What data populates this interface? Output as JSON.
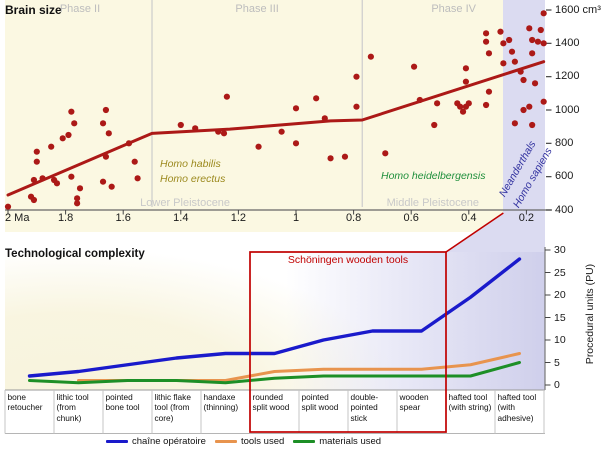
{
  "figure": {
    "top_title": "Brain size",
    "bottom_title": "Technological complexity"
  },
  "colors": {
    "panel_yellow": "#FBF8E2",
    "highlight_blue": "#DBDBF1",
    "data_red": "#AC1917",
    "annotation_red": "#C00000",
    "phase_gray": "#BDBDBD",
    "period_gray": "#C9C9C9",
    "species_olive": "#9C8A1F",
    "species_green": "#1F8F3C",
    "species_navy": "#3333A0"
  },
  "chart_data": [
    {
      "type": "scatter",
      "title": "Brain size",
      "x_unit": "Ma",
      "y_unit": "cm³",
      "xlim": [
        2.0,
        0.13
      ],
      "ylim": [
        400,
        1640
      ],
      "x_ticks": [
        {
          "label": "2 Ma",
          "value": 2
        },
        {
          "label": "1.8",
          "value": 1.8
        },
        {
          "label": "1.6",
          "value": 1.6
        },
        {
          "label": "1.4",
          "value": 1.4
        },
        {
          "label": "1.2",
          "value": 1.2
        },
        {
          "label": "1",
          "value": 1
        },
        {
          "label": "0.8",
          "value": 0.8
        },
        {
          "label": "0.6",
          "value": 0.6
        },
        {
          "label": "0.4",
          "value": 0.4
        },
        {
          "label": "0.2",
          "value": 0.2
        }
      ],
      "y_ticks": [
        {
          "label": "1600 cm³",
          "value": 1600
        },
        {
          "label": "1400",
          "value": 1400
        },
        {
          "label": "1200",
          "value": 1200
        },
        {
          "label": "1000",
          "value": 1000
        },
        {
          "label": "800",
          "value": 800
        },
        {
          "label": "600",
          "value": 600
        },
        {
          "label": "400",
          "value": 400
        }
      ],
      "phases": [
        {
          "label": "Phase II",
          "from_ma": 2.0,
          "to_ma": 1.5
        },
        {
          "label": "Phase III",
          "from_ma": 1.5,
          "to_ma": 0.77
        },
        {
          "label": "Phase IV",
          "from_ma": 0.77,
          "to_ma": 0.135
        }
      ],
      "period_labels": [
        {
          "label": "Lower Pleistocene",
          "center_ma": 1.385
        },
        {
          "label": "Middle Pleistocene",
          "center_ma": 0.525
        }
      ],
      "species_labels": [
        {
          "label": "Homo habilis",
          "color_key": "species_olive"
        },
        {
          "label": "Homo erectus",
          "color_key": "species_olive"
        },
        {
          "label": "Homo heidelbergensis",
          "color_key": "species_green"
        },
        {
          "label": "Neanderthals",
          "color_key": "species_navy"
        },
        {
          "label": "Homo sapiens",
          "color_key": "species_navy"
        }
      ],
      "highlight_band_ma": [
        0.28,
        0.135
      ],
      "trend_line": [
        [
          2.0,
          490
        ],
        [
          1.5,
          860
        ],
        [
          1.23,
          885
        ],
        [
          0.88,
          935
        ],
        [
          0.77,
          940
        ],
        [
          0.14,
          1290
        ]
      ],
      "points": [
        [
          2.0,
          420
        ],
        [
          1.92,
          480
        ],
        [
          1.91,
          460
        ],
        [
          1.91,
          580
        ],
        [
          1.9,
          750
        ],
        [
          1.9,
          690
        ],
        [
          1.88,
          590
        ],
        [
          1.85,
          780
        ],
        [
          1.84,
          580
        ],
        [
          1.83,
          560
        ],
        [
          1.81,
          830
        ],
        [
          1.79,
          850
        ],
        [
          1.78,
          990
        ],
        [
          1.78,
          600
        ],
        [
          1.77,
          920
        ],
        [
          1.76,
          440
        ],
        [
          1.76,
          470
        ],
        [
          1.75,
          530
        ],
        [
          1.67,
          920
        ],
        [
          1.66,
          1000
        ],
        [
          1.67,
          570
        ],
        [
          1.66,
          720
        ],
        [
          1.65,
          860
        ],
        [
          1.64,
          540
        ],
        [
          1.58,
          800
        ],
        [
          1.56,
          690
        ],
        [
          1.55,
          590
        ],
        [
          1.4,
          910
        ],
        [
          1.35,
          890
        ],
        [
          1.27,
          870
        ],
        [
          1.25,
          860
        ],
        [
          1.24,
          1080
        ],
        [
          1.13,
          780
        ],
        [
          1.05,
          870
        ],
        [
          1.0,
          1010
        ],
        [
          1.0,
          800
        ],
        [
          0.93,
          1070
        ],
        [
          0.9,
          950
        ],
        [
          0.88,
          710
        ],
        [
          0.83,
          720
        ],
        [
          0.79,
          1200
        ],
        [
          0.79,
          1020
        ],
        [
          0.74,
          1320
        ],
        [
          0.69,
          740
        ],
        [
          0.59,
          1260
        ],
        [
          0.57,
          1060
        ],
        [
          0.52,
          910
        ],
        [
          0.51,
          1040
        ],
        [
          0.44,
          1040
        ],
        [
          0.43,
          1020
        ],
        [
          0.42,
          990
        ],
        [
          0.41,
          1020
        ],
        [
          0.4,
          1040
        ],
        [
          0.41,
          1250
        ],
        [
          0.41,
          1170
        ],
        [
          0.34,
          1460
        ],
        [
          0.34,
          1410
        ],
        [
          0.33,
          1340
        ],
        [
          0.33,
          1110
        ],
        [
          0.34,
          1030
        ],
        [
          0.29,
          1470
        ],
        [
          0.28,
          1400
        ],
        [
          0.28,
          1280
        ],
        [
          0.26,
          1420
        ],
        [
          0.25,
          1350
        ],
        [
          0.24,
          920
        ],
        [
          0.24,
          1290
        ],
        [
          0.22,
          1230
        ],
        [
          0.21,
          1180
        ],
        [
          0.21,
          1000
        ],
        [
          0.19,
          1490
        ],
        [
          0.19,
          1020
        ],
        [
          0.18,
          1420
        ],
        [
          0.18,
          910
        ],
        [
          0.18,
          1340
        ],
        [
          0.17,
          1160
        ],
        [
          0.16,
          1410
        ],
        [
          0.15,
          1480
        ],
        [
          0.14,
          1580
        ],
        [
          0.14,
          1400
        ],
        [
          0.14,
          1050
        ]
      ]
    },
    {
      "type": "line",
      "ylabel": "Procedural units (PU)",
      "ylim": [
        0,
        31
      ],
      "y_ticks": [
        0,
        5,
        10,
        15,
        20,
        25,
        30
      ],
      "categories": [
        "bone retoucher",
        "lithic tool (from chunk)",
        "pointed bone tool",
        "lithic flake tool (from core)",
        "handaxe (thinning)",
        "rounded split wood",
        "pointed split wood",
        "double-pointed stick",
        "wooden spear",
        "hafted tool (with string)",
        "hafted tool (with adhesive)"
      ],
      "series": [
        {
          "name": "chaîne opératoire",
          "color": "#1A1ACB",
          "values": [
            2,
            3,
            4.5,
            6,
            7,
            7,
            10,
            12,
            12,
            19.5,
            28
          ]
        },
        {
          "name": "tools used",
          "color": "#E8944E",
          "values": [
            null,
            1,
            1,
            1,
            1,
            3,
            3.5,
            3.5,
            3.5,
            4.5,
            7
          ]
        },
        {
          "name": "materials used",
          "color": "#1D8F26",
          "values": [
            1,
            0.5,
            1,
            1,
            0.5,
            1.5,
            2,
            2,
            2,
            2,
            5
          ]
        }
      ],
      "annotation_box": {
        "label": "Schöningen wooden tools",
        "from_category": "rounded split wood",
        "to_category": "wooden spear",
        "links_to_ma": 0.28
      }
    }
  ]
}
